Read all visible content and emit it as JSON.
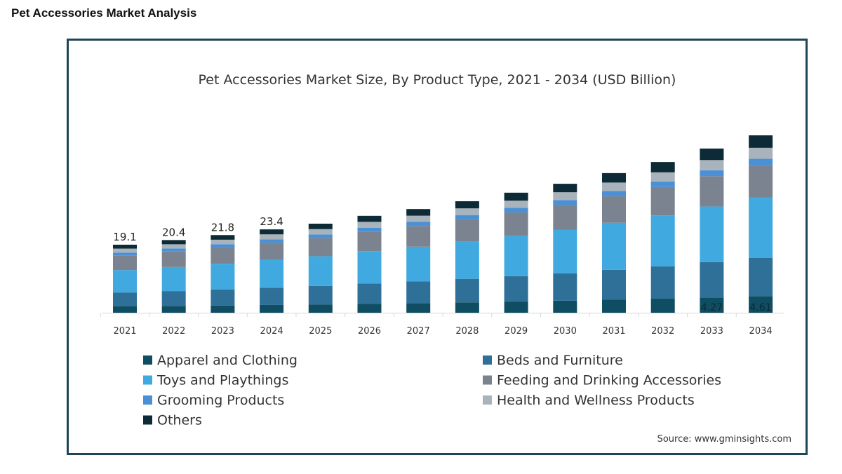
{
  "page": {
    "title": "Pet Accessories Market Analysis"
  },
  "chart_data": {
    "type": "bar",
    "stacked": true,
    "title": "Pet Accessories Market Size, By Product Type, 2021 - 2034 (USD Billion)",
    "xlabel": "",
    "ylabel": "",
    "ylim": [
      0,
      55
    ],
    "grid": false,
    "legend_position": "bottom",
    "categories": [
      "2021",
      "2022",
      "2023",
      "2024",
      "2025",
      "2026",
      "2027",
      "2028",
      "2029",
      "2030",
      "2031",
      "2032",
      "2033",
      "2034"
    ],
    "series": [
      {
        "name": "Apparel and Clothing",
        "color": "#0f4d62",
        "values": [
          1.78,
          1.9,
          2.03,
          2.18,
          2.33,
          2.53,
          2.71,
          2.91,
          3.13,
          3.37,
          3.65,
          3.93,
          4.27,
          4.61
        ]
      },
      {
        "name": "Beds and Furniture",
        "color": "#2f7098",
        "values": [
          3.9,
          4.18,
          4.49,
          4.84,
          5.2,
          5.68,
          6.11,
          6.6,
          7.14,
          7.71,
          8.39,
          9.09,
          9.96,
          10.81
        ]
      },
      {
        "name": "Toys and Playthings",
        "color": "#40aae0",
        "values": [
          6.3,
          6.75,
          7.22,
          7.77,
          8.33,
          9.06,
          9.72,
          10.49,
          11.32,
          12.16,
          13.21,
          14.3,
          15.58,
          16.88
        ]
      },
      {
        "name": "Feeding and Drinking Accessories",
        "color": "#7a838f",
        "values": [
          4.11,
          4.35,
          4.58,
          4.87,
          5.13,
          5.52,
          5.82,
          6.2,
          6.57,
          6.99,
          7.45,
          7.95,
          8.53,
          9.11
        ]
      },
      {
        "name": "Grooming Products",
        "color": "#4a90d6",
        "values": [
          0.8,
          0.86,
          0.89,
          0.96,
          1.0,
          1.09,
          1.13,
          1.22,
          1.28,
          1.38,
          1.45,
          1.57,
          1.66,
          1.79
        ]
      },
      {
        "name": "Health and Wellness Products",
        "color": "#a9b3bb",
        "values": [
          1.11,
          1.18,
          1.29,
          1.38,
          1.48,
          1.63,
          1.75,
          1.88,
          2.02,
          2.21,
          2.39,
          2.58,
          2.86,
          3.09
        ]
      },
      {
        "name": "Others",
        "color": "#0d2b36",
        "values": [
          1.1,
          1.18,
          1.3,
          1.4,
          1.53,
          1.69,
          1.86,
          2.0,
          2.24,
          2.38,
          2.66,
          2.88,
          3.24,
          3.51
        ]
      }
    ],
    "total_labels": [
      {
        "category": "2021",
        "text": "19.1"
      },
      {
        "category": "2022",
        "text": "20.4"
      },
      {
        "category": "2023",
        "text": "21.8"
      },
      {
        "category": "2024",
        "text": "23.4"
      }
    ],
    "segment_labels": [
      {
        "category": "2033",
        "series": "Apparel and Clothing",
        "text": "4.27"
      },
      {
        "category": "2034",
        "series": "Apparel and Clothing",
        "text": "4.61"
      }
    ],
    "source": "Source: www.gminsights.com"
  }
}
